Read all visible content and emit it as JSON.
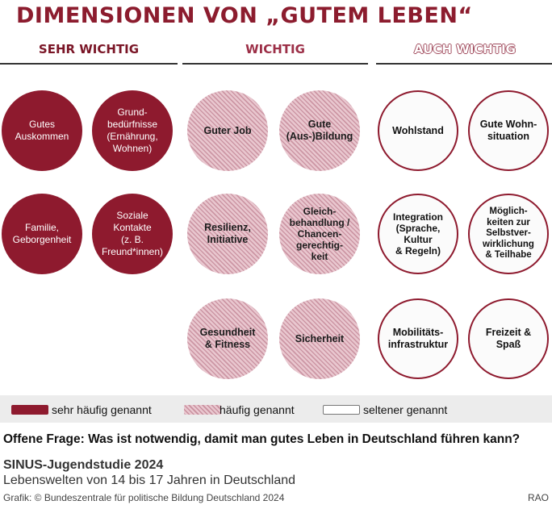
{
  "title": "DIMENSIONEN VON „GUTEM LEBEN“",
  "columns": [
    {
      "heading": "SEHR WICHTIG"
    },
    {
      "heading": "WICHTIG"
    },
    {
      "heading": "AUCH WICHTIG"
    }
  ],
  "circles": {
    "sehr_wichtig": [
      "Gutes\nAuskommen",
      "Grund-\nbedürfnisse\n(Ernährung,\nWohnen)",
      "Familie,\nGeborgenheit",
      "Soziale\nKontakte\n(z. B.\nFreund*innen)"
    ],
    "wichtig": [
      "Guter Job",
      "Gute\n(Aus-)Bildung",
      "Resilienz,\nInitiative",
      "Gleich-\nbehandlung /\nChancen-\ngerechtig-\nkeit",
      "Gesundheit\n& Fitness",
      "Sicherheit"
    ],
    "auch_wichtig": [
      "Wohlstand",
      "Gute Wohn-\nsituation",
      "Integration\n(Sprache,\nKultur\n& Regeln)",
      "Möglich-\nkeiten zur\nSelbstver-\nwirklichung\n& Teilhabe",
      "Mobilitäts-\ninfrastruktur",
      "Freizeit &\nSpaß"
    ]
  },
  "legend": [
    {
      "label": "sehr häufig genannt",
      "color": "#8e1a2e"
    },
    {
      "label": "häufig genannt",
      "color": "#e9c7cf"
    },
    {
      "label": "seltener genannt",
      "color": "#ffffff"
    }
  ],
  "question": "Offene Frage: Was ist notwendig, damit man gutes Leben in Deutschland führen kann?",
  "study": "SINUS-Jugendstudie 2024",
  "subtitle": "Lebenswelten von 14 bis 17 Jahren in Deutschland",
  "credit": "Grafik: © Bundeszentrale für politische Bildung Deutschland 2024",
  "agency": "RAO"
}
